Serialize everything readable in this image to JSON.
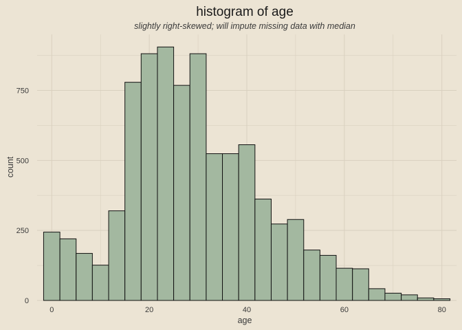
{
  "chart_data": {
    "type": "bar",
    "title": "histogram of age",
    "subtitle": "slightly right-skewed; will impute missing data with median",
    "xlabel": "age",
    "ylabel": "count",
    "bin_width": 3.333,
    "bins": [
      {
        "x0": -1.67,
        "x1": 1.67,
        "count": 244
      },
      {
        "x0": 1.67,
        "x1": 5.0,
        "count": 220
      },
      {
        "x0": 5.0,
        "x1": 8.33,
        "count": 168
      },
      {
        "x0": 8.33,
        "x1": 11.67,
        "count": 126
      },
      {
        "x0": 11.67,
        "x1": 15.0,
        "count": 320
      },
      {
        "x0": 15.0,
        "x1": 18.33,
        "count": 779
      },
      {
        "x0": 18.33,
        "x1": 21.67,
        "count": 881
      },
      {
        "x0": 21.67,
        "x1": 25.0,
        "count": 905
      },
      {
        "x0": 25.0,
        "x1": 28.33,
        "count": 768
      },
      {
        "x0": 28.33,
        "x1": 31.67,
        "count": 881
      },
      {
        "x0": 31.67,
        "x1": 35.0,
        "count": 524
      },
      {
        "x0": 35.0,
        "x1": 38.33,
        "count": 524
      },
      {
        "x0": 38.33,
        "x1": 41.67,
        "count": 556
      },
      {
        "x0": 41.67,
        "x1": 45.0,
        "count": 362
      },
      {
        "x0": 45.0,
        "x1": 48.33,
        "count": 273
      },
      {
        "x0": 48.33,
        "x1": 51.67,
        "count": 289
      },
      {
        "x0": 51.67,
        "x1": 55.0,
        "count": 180
      },
      {
        "x0": 55.0,
        "x1": 58.33,
        "count": 161
      },
      {
        "x0": 58.33,
        "x1": 61.67,
        "count": 115
      },
      {
        "x0": 61.67,
        "x1": 65.0,
        "count": 113
      },
      {
        "x0": 65.0,
        "x1": 68.33,
        "count": 42
      },
      {
        "x0": 68.33,
        "x1": 71.67,
        "count": 26
      },
      {
        "x0": 71.67,
        "x1": 75.0,
        "count": 20
      },
      {
        "x0": 75.0,
        "x1": 78.33,
        "count": 9
      },
      {
        "x0": 78.33,
        "x1": 81.67,
        "count": 6
      }
    ],
    "x_ticks": [
      0,
      20,
      40,
      60,
      80
    ],
    "y_ticks": [
      0,
      250,
      500,
      750
    ],
    "xlim": [
      -3.0,
      83.0
    ],
    "ylim": [
      0,
      950
    ],
    "grid": true,
    "legend": "none",
    "colors": {
      "background": "#ece4d4",
      "bar_fill": "#a3b8a0",
      "bar_stroke": "#111111",
      "grid": "#d9d0bf"
    }
  }
}
